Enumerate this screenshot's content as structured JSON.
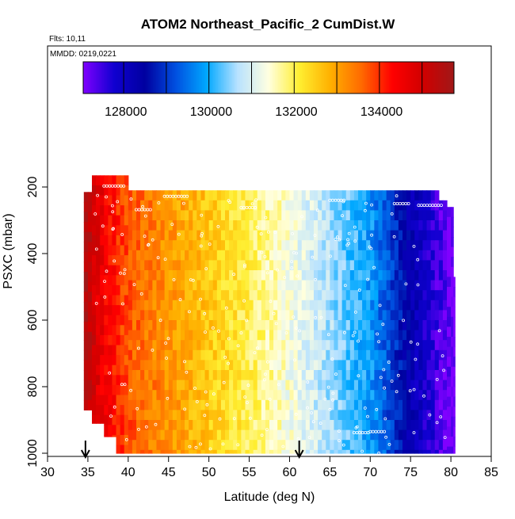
{
  "chart_data": {
    "type": "heatmap",
    "title": "ATOM2 Northeast_Pacific_2 CumDist.W",
    "flights_label": "Flts: 10,11",
    "dates_label": "MMDD: 0219,0221",
    "xlabel": "Latitude (deg N)",
    "ylabel": "PSXC (mbar)",
    "xlim": [
      30,
      85
    ],
    "ylim": [
      1020,
      50
    ],
    "y_reversed": true,
    "x_ticks": [
      30,
      35,
      40,
      45,
      50,
      55,
      60,
      65,
      70,
      75,
      80,
      85
    ],
    "y_ticks": [
      200,
      400,
      600,
      800,
      1000
    ],
    "colorbar": {
      "ticks": [
        128000,
        130000,
        132000,
        134000
      ],
      "tick_labels": [
        "128000",
        "130000",
        "132000",
        "134000"
      ],
      "range": [
        127000,
        135700
      ],
      "colors": [
        "#8000ff",
        "#1000d0",
        "#0000a0",
        "#0050e0",
        "#00a8ff",
        "#b8e2ff",
        "#ffffe0",
        "#ffee30",
        "#ffb000",
        "#ff6a00",
        "#ff0000",
        "#d00000",
        "#a01818"
      ],
      "block_edges": [
        127000,
        127950,
        128950,
        129950,
        130950,
        131950,
        132950,
        133950,
        134950,
        135700
      ]
    },
    "field": {
      "description_values": "Cumulative distance (W) as function of latitude; ~135500 at 34.5N decreasing to ~127000 at 80.5N",
      "lat_points": [
        34.5,
        36,
        38,
        40,
        45,
        50,
        55,
        60,
        65,
        70,
        73,
        75,
        78,
        80.5
      ],
      "value_points": [
        135600,
        134800,
        134200,
        133700,
        133100,
        132500,
        131950,
        131300,
        130600,
        129800,
        128900,
        128200,
        127500,
        127000
      ],
      "domain_columns": [
        {
          "lat": [
            34.5,
            35.5
          ],
          "p": [
            660,
            870
          ]
        },
        {
          "lat": [
            34.5,
            35.5
          ],
          "p": [
            215,
            660
          ]
        },
        {
          "lat": [
            35.5,
            37.0
          ],
          "p": [
            165,
            910
          ]
        },
        {
          "lat": [
            37.0,
            38.5
          ],
          "p": [
            165,
            950
          ]
        },
        {
          "lat": [
            38.5,
            40.0
          ],
          "p": [
            165,
            1000
          ]
        },
        {
          "lat": [
            40.0,
            78.5
          ],
          "p": [
            210,
            1000
          ]
        },
        {
          "lat": [
            78.5,
            79.5
          ],
          "p": [
            240,
            1000
          ]
        },
        {
          "lat": [
            79.5,
            80.3
          ],
          "p": [
            260,
            1000
          ]
        },
        {
          "lat": [
            80.3,
            80.5
          ],
          "p": [
            470,
            1000
          ]
        }
      ]
    },
    "profile_markers": [
      {
        "lat": 34.7,
        "p_range": [
          1000,
          1000
        ]
      },
      {
        "lat": 61.2,
        "p_range": [
          1000,
          1000
        ]
      }
    ]
  }
}
